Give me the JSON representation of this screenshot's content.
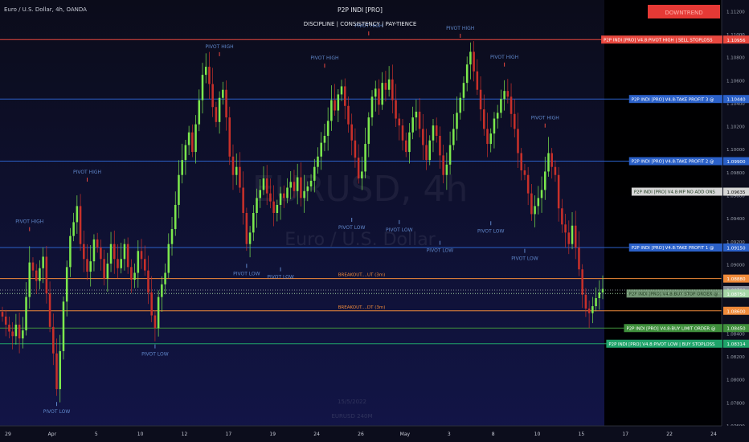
{
  "header": {
    "symbol": "Euro / U.S. Dollar, 4h, OANDA",
    "indicator_name": "P2P INDI [PRO]",
    "tagline": "DISCIPLINE  |  CONSISTENCY  |  PAY-TIENCE",
    "trend_badge": "DOWNTREND"
  },
  "watermark": {
    "ticker": "EURUSD, 4h",
    "name": "Euro / U.S. Dollar"
  },
  "faint_labels": {
    "date": "15/5/2022",
    "ticker": "EURUSD 240M"
  },
  "colors": {
    "background": "#0c0d1c",
    "future_zone": "#000000",
    "up_candle": "#7ce84d",
    "down_candle": "#c8302a",
    "resistance": "#e8483f",
    "take_profit": "#2b61c9",
    "breakout": "#f08a3a",
    "buy_limit": "#3f8f3c",
    "support": "#1fa36a"
  },
  "chart_data": {
    "type": "candlestick",
    "y_axis": {
      "min": 1.076,
      "max": 1.113,
      "ticks": [
        "1.11200",
        "1.11000",
        "1.10800",
        "1.10600",
        "1.10400",
        "1.10200",
        "1.10000",
        "1.09800",
        "1.09600",
        "1.09400",
        "1.09200",
        "1.09000",
        "1.08800",
        "1.08600",
        "1.08400",
        "1.08200",
        "1.08000",
        "1.07800",
        "1.07600"
      ]
    },
    "x_axis": {
      "labels": [
        "29",
        "Apr",
        "5",
        "10",
        "12",
        "17",
        "19",
        "24",
        "26",
        "May",
        "3",
        "8",
        "10",
        "15",
        "17",
        "22",
        "24"
      ]
    },
    "levels": [
      {
        "name": "pivot-high-sell-stoploss",
        "value": 1.10956,
        "price": "1.10956",
        "tag": "P2P INDI [PRO] V4.8:PIVOT HIGH | SELL STOPLOSS",
        "color": "#e8483f",
        "style": "solid"
      },
      {
        "name": "take-profit-3",
        "value": 1.1044,
        "price": "1.10440",
        "tag": "P2P INDI [PRO] V4.8:TAKE PROFIT 3 @",
        "color": "#2b61c9",
        "style": "solid"
      },
      {
        "name": "take-profit-2",
        "value": 1.099,
        "price": "1.09900",
        "tag": "P2P INDI [PRO] V4.8:TAKE PROFIT 2 @",
        "color": "#2b61c9",
        "style": "solid"
      },
      {
        "name": "mp-no-add-ons",
        "value": 1.09635,
        "price": "1.09635",
        "tag": "P2P INDI [PRO] V4.8:MP  NO ADD ONS",
        "color": "#d6d6d6",
        "style": "none"
      },
      {
        "name": "take-profit-1",
        "value": 1.0915,
        "price": "1.09150",
        "tag": "P2P INDI [PRO] V4.8:TAKE PROFIT 1 @",
        "color": "#2b61c9",
        "style": "solid"
      },
      {
        "name": "breakout-up",
        "value": 1.0888,
        "price": "1.08880",
        "tag": "",
        "mid_label": "BREAKOUT....UT (3m)",
        "color": "#f08a3a",
        "style": "solid"
      },
      {
        "name": "current-price",
        "value": 1.0878,
        "price": "1.08780",
        "tag": "",
        "color": "#8a8f9c",
        "style": "dotted"
      },
      {
        "name": "buy-stop-order",
        "value": 1.0875,
        "price": "1.08750",
        "tag": "P2P INDI [PRO] V4.8:BUY STOP ORDER @",
        "color": "#a5d6a7",
        "style": "dotted"
      },
      {
        "name": "breakout-down",
        "value": 1.086,
        "price": "1.08600",
        "tag": "",
        "mid_label": "BREAKOUT....DT (3m)",
        "color": "#f08a3a",
        "style": "solid"
      },
      {
        "name": "buy-limit-order",
        "value": 1.0845,
        "price": "1.08450",
        "tag": "P2P INDI [PRO] V4.8:BUY LIMIT ORDER @",
        "color": "#3f8f3c",
        "style": "solid"
      },
      {
        "name": "pivot-low-buy-stoploss",
        "value": 1.08314,
        "price": "1.08314",
        "tag": "P2P INDI [PRO] V4.8:PIVOT LOW | BUY STOPLOSS",
        "color": "#1fa36a",
        "style": "solid"
      }
    ],
    "pivots": [
      {
        "label": "PIVOT HIGH",
        "kind": "high",
        "bar": 8,
        "value": 1.0925
      },
      {
        "label": "PIVOT LOW",
        "kind": "low",
        "bar": 16,
        "value": 1.0785
      },
      {
        "label": "PIVOT HIGH",
        "kind": "high",
        "bar": 25,
        "value": 1.0968
      },
      {
        "label": "PIVOT LOW",
        "kind": "low",
        "bar": 45,
        "value": 1.0835
      },
      {
        "label": "PIVOT HIGH",
        "kind": "high",
        "bar": 64,
        "value": 1.1077
      },
      {
        "label": "PIVOT LOW",
        "kind": "low",
        "bar": 72,
        "value": 1.0905
      },
      {
        "label": "PIVOT LOW",
        "kind": "low",
        "bar": 82,
        "value": 1.0902
      },
      {
        "label": "PIVOT HIGH",
        "kind": "high",
        "bar": 95,
        "value": 1.1067
      },
      {
        "label": "PIVOT LOW",
        "kind": "low",
        "bar": 103,
        "value": 1.0945
      },
      {
        "label": "PIVOT HIGH",
        "kind": "high",
        "bar": 108,
        "value": 1.1095
      },
      {
        "label": "PIVOT LOW",
        "kind": "low",
        "bar": 117,
        "value": 1.0943
      },
      {
        "label": "PIVOT LOW",
        "kind": "low",
        "bar": 129,
        "value": 1.0925
      },
      {
        "label": "PIVOT HIGH",
        "kind": "high",
        "bar": 135,
        "value": 1.1093
      },
      {
        "label": "PIVOT LOW",
        "kind": "low",
        "bar": 144,
        "value": 1.0942
      },
      {
        "label": "PIVOT HIGH",
        "kind": "high",
        "bar": 148,
        "value": 1.1068
      },
      {
        "label": "PIVOT HIGH",
        "kind": "high",
        "bar": 160,
        "value": 1.1015
      },
      {
        "label": "PIVOT LOW",
        "kind": "low",
        "bar": 154,
        "value": 1.0918
      }
    ],
    "closes": [
      1.0855,
      1.0848,
      1.0842,
      1.0838,
      1.0848,
      1.0836,
      1.0843,
      1.0872,
      1.0902,
      1.0895,
      1.0886,
      1.0897,
      1.0907,
      1.0875,
      1.0846,
      1.0823,
      1.0792,
      1.0825,
      1.0868,
      1.0898,
      1.0925,
      1.0937,
      1.0951,
      1.0918,
      1.0905,
      1.0894,
      1.0903,
      1.0922,
      1.0915,
      1.0905,
      1.0888,
      1.0901,
      1.0918,
      1.0905,
      1.0897,
      1.0905,
      1.0918,
      1.0898,
      1.0887,
      1.0893,
      1.0912,
      1.0905,
      1.0895,
      1.0876,
      1.0856,
      1.0845,
      1.0872,
      1.0883,
      1.0893,
      1.0918,
      1.0931,
      1.0952,
      1.0978,
      1.0991,
      1.1004,
      1.1015,
      1.0998,
      1.1022,
      1.1043,
      1.1065,
      1.1072,
      1.1057,
      1.1037,
      1.1024,
      1.1045,
      1.1052,
      1.1028,
      1.0994,
      1.0978,
      1.0985,
      1.0967,
      1.0945,
      1.0918,
      1.0928,
      1.0945,
      1.0958,
      1.0965,
      1.0975,
      1.0962,
      1.0955,
      1.0945,
      1.0952,
      1.0962,
      1.0958,
      1.0967,
      1.0972,
      1.0964,
      1.0976,
      1.0958,
      1.0964,
      1.0968,
      1.0973,
      1.0985,
      1.0994,
      1.1006,
      1.1012,
      1.1025,
      1.1043,
      1.1034,
      1.1048,
      1.1055,
      1.1038,
      1.1022,
      1.1008,
      1.0993,
      1.0975,
      1.0981,
      1.1005,
      1.1028,
      1.1046,
      1.1053,
      1.1039,
      1.1058,
      1.1052,
      1.1061,
      1.1043,
      1.1027,
      1.1021,
      1.1008,
      1.0998,
      1.1015,
      1.1028,
      1.1033,
      1.1018,
      1.1004,
      1.0991,
      1.1008,
      1.1021,
      1.1012,
      1.0995,
      1.0978,
      1.0987,
      1.1004,
      1.1018,
      1.1032,
      1.1045,
      1.1058,
      1.1074,
      1.1085,
      1.1068,
      1.1052,
      1.1035,
      1.1018,
      1.1005,
      1.1014,
      1.1027,
      1.1032,
      1.1044,
      1.1051,
      1.1046,
      1.1031,
      1.1018,
      1.0997,
      1.0982,
      1.0978,
      1.0962,
      1.0944,
      1.0951,
      1.0958,
      1.0965,
      1.0981,
      1.0997,
      1.0985,
      1.0978,
      1.0949,
      1.0935,
      1.0928,
      1.0918,
      1.0934,
      1.0915,
      1.0896,
      1.0874,
      1.0862,
      1.0858,
      1.0864,
      1.0871,
      1.0876,
      1.0879
    ]
  }
}
